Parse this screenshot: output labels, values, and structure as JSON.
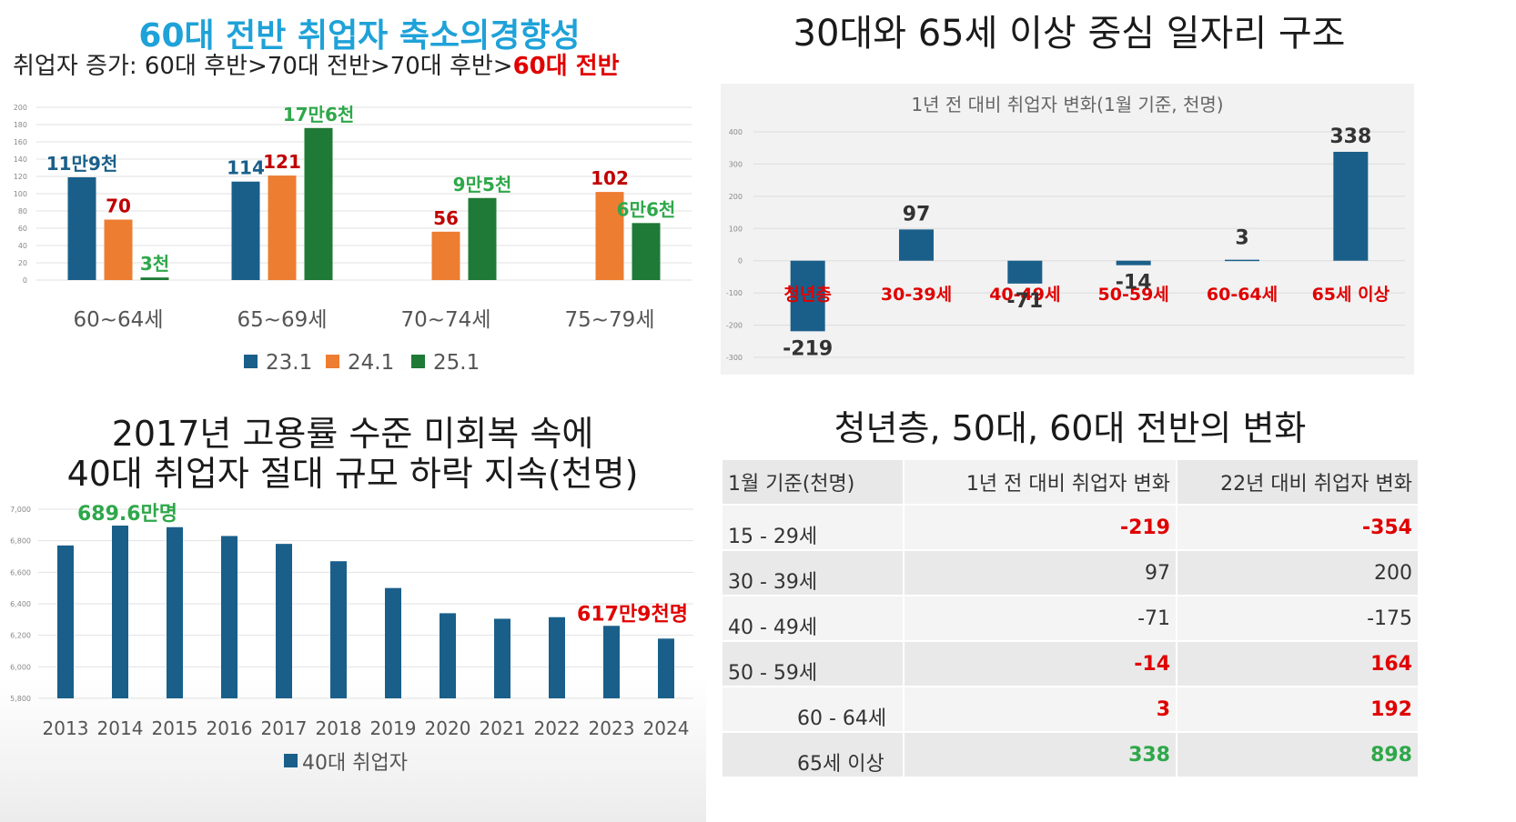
{
  "panel1": {
    "title": "60대 전반 취업자 축소의경향성",
    "subtitle_prefix": "취업자 증가: 60대 후반>70대 전반>70대 후반>",
    "subtitle_highlight": "60대 전반"
  },
  "panel2": {
    "title": "30대와 65세 이상 중심 일자리 구조"
  },
  "panel3": {
    "title_line1": "2017년 고용률 수준 미회복 속에",
    "title_line2": "40대 취업자 절대 규모 하락 지속(천명)"
  },
  "panel4": {
    "title": "청년층, 50대, 60대 전반의 변화",
    "table": {
      "headers": [
        "1월 기준(천명)",
        "1년 전 대비 취업자 변화",
        "22년 대비 취업자 변화"
      ],
      "rows": [
        {
          "label": "15 - 29세",
          "v1": "-219",
          "v2": "-354",
          "c1": "#e00000",
          "c2": "#e00000"
        },
        {
          "label": "30 - 39세",
          "v1": "97",
          "v2": "200",
          "c1": "#333333",
          "c2": "#333333"
        },
        {
          "label": "40 - 49세",
          "v1": "-71",
          "v2": "-175",
          "c1": "#333333",
          "c2": "#333333"
        },
        {
          "label": "50 - 59세",
          "v1": "-14",
          "v2": "164",
          "c1": "#e00000",
          "c2": "#e00000"
        },
        {
          "label": "60 - 64세",
          "v1": "3",
          "v2": "192",
          "c1": "#e00000",
          "c2": "#e00000"
        },
        {
          "label": "65세 이상",
          "v1": "338",
          "v2": "898",
          "c1": "#2ea84a",
          "c2": "#2ea84a"
        }
      ]
    }
  },
  "colors": {
    "blue": "#1a5f8a",
    "orange": "#ed7d31",
    "green": "#1e7a36",
    "title_blue": "#1ea2d8",
    "red": "#e00000",
    "label_green": "#2ea84a"
  },
  "chart_data": [
    {
      "type": "bar",
      "categories": [
        "60~64세",
        "65~69세",
        "70~74세",
        "75~79세"
      ],
      "series": [
        {
          "name": "23.1",
          "values": [
            119,
            114,
            null,
            null
          ],
          "color": "#1a5f8a"
        },
        {
          "name": "24.1",
          "values": [
            70,
            121,
            56,
            102
          ],
          "color": "#ed7d31"
        },
        {
          "name": "25.1",
          "values": [
            3,
            176,
            95,
            66
          ],
          "color": "#1e7a36"
        }
      ],
      "data_labels": [
        [
          "11만9천",
          "114",
          null,
          null
        ],
        [
          "70",
          "121",
          "56",
          "102"
        ],
        [
          "3천",
          "17만6천",
          "9만5천",
          "6만6천"
        ]
      ],
      "label_colors": [
        "#1a5f8a",
        "#c00000",
        "#2ea84a"
      ],
      "yticks": [
        "200",
        "180",
        "160",
        "140",
        "120",
        "100",
        "80",
        "60",
        "40",
        "20",
        "0"
      ],
      "ylim": [
        0,
        200
      ],
      "grid": true,
      "legend": "bottom"
    },
    {
      "type": "bar",
      "title": "1년 전 대비 취업자 변화(1월 기준, 천명)",
      "categories": [
        "청년층",
        "30-39세",
        "40-49세",
        "50-59세",
        "60-64세",
        "65세 이상"
      ],
      "values": [
        -219,
        97,
        -71,
        -14,
        3,
        338
      ],
      "data_labels": [
        "-219",
        "97",
        "-71",
        "-14",
        "3",
        "338"
      ],
      "yticks": [
        "400",
        "300",
        "200",
        "100",
        "0",
        "-100",
        "-200",
        "-300"
      ],
      "ylim": [
        -300,
        400
      ],
      "grid": true
    },
    {
      "type": "bar",
      "categories": [
        "2013",
        "2014",
        "2015",
        "2016",
        "2017",
        "2018",
        "2019",
        "2020",
        "2021",
        "2022",
        "2023",
        "2024"
      ],
      "series": [
        {
          "name": "40대 취업자",
          "values": [
            6770,
            6896,
            6886,
            6830,
            6780,
            6670,
            6500,
            6340,
            6305,
            6315,
            6260,
            6179
          ]
        }
      ],
      "annotations": [
        {
          "text": "689.6만명",
          "color": "#2ea84a"
        },
        {
          "text": "617만9천명",
          "color": "#e00000"
        }
      ],
      "yticks": [
        "7,000",
        "6,800",
        "6,600",
        "6,400",
        "6,200",
        "6,000",
        "5,800"
      ],
      "ylim": [
        5800,
        7000
      ],
      "grid": true,
      "legend": "bottom"
    }
  ]
}
